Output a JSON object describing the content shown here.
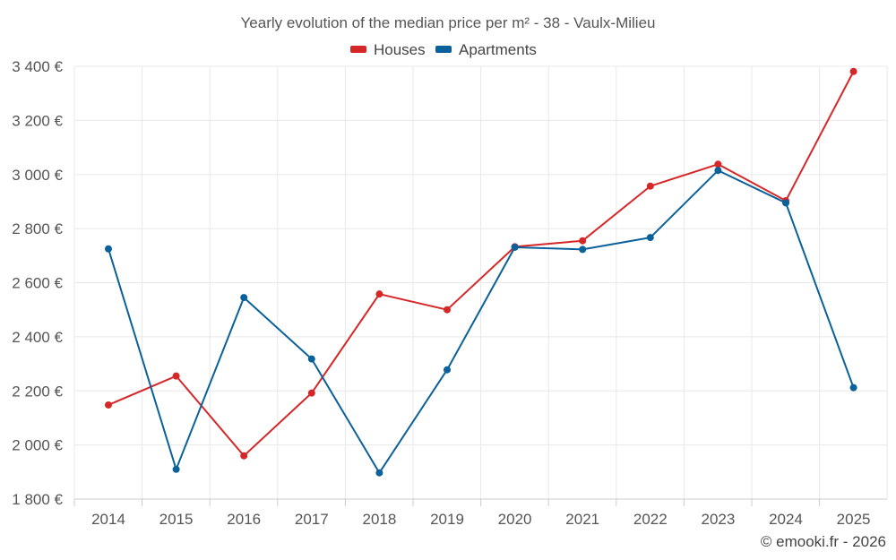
{
  "chart_data": {
    "type": "line",
    "title": "Yearly evolution of the median price per m² - 38 - Vaulx-Milieu",
    "xlabel": "",
    "ylabel": "",
    "categories": [
      "2014",
      "2015",
      "2016",
      "2017",
      "2018",
      "2019",
      "2020",
      "2021",
      "2022",
      "2023",
      "2024",
      "2025"
    ],
    "ylim": [
      1800,
      3400
    ],
    "yticks": [
      1800,
      2000,
      2200,
      2400,
      2600,
      2800,
      3000,
      3200,
      3400
    ],
    "ytick_labels": [
      "1 800 €",
      "2 000 €",
      "2 200 €",
      "2 400 €",
      "2 600 €",
      "2 800 €",
      "3 000 €",
      "3 200 €",
      "3 400 €"
    ],
    "grid": true,
    "legend_position": "top-center",
    "series": [
      {
        "name": "Houses",
        "color": "#d62728",
        "values": [
          2148,
          2255,
          1960,
          2192,
          2558,
          2500,
          2733,
          2755,
          2957,
          3038,
          2903,
          3381
        ]
      },
      {
        "name": "Apartments",
        "color": "#0b6199",
        "values": [
          2725,
          1910,
          2545,
          2318,
          1897,
          2278,
          2731,
          2723,
          2767,
          3015,
          2895,
          2212
        ]
      }
    ]
  },
  "credit": "© emooki.fr - 2026"
}
